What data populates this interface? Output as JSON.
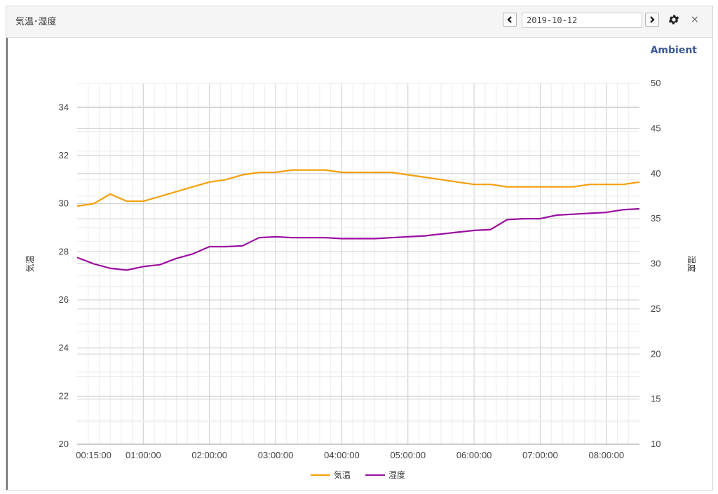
{
  "panel": {
    "title": "気温･湿度"
  },
  "toolbar": {
    "date_value": "2019-10-12",
    "prev_icon": "chevron-left-icon",
    "next_icon": "chevron-right-icon",
    "settings_icon": "gear-icon",
    "close_label": "×"
  },
  "brand": {
    "label": "Ambient",
    "color": "#3b5998"
  },
  "chart_data": {
    "type": "line",
    "x_ticks": [
      "00:15:00",
      "01:00:00",
      "02:00:00",
      "03:00:00",
      "04:00:00",
      "05:00:00",
      "06:00:00",
      "07:00:00",
      "08:00:00"
    ],
    "x_range": [
      "00:00:00",
      "08:30:00"
    ],
    "y_left": {
      "label": "気温",
      "ticks": [
        "20",
        "22",
        "24",
        "26",
        "28",
        "30",
        "32",
        "34"
      ],
      "range": [
        20,
        35
      ]
    },
    "y_right": {
      "label": "湿度",
      "ticks": [
        "10",
        "15",
        "20",
        "25",
        "30",
        "35",
        "40",
        "45",
        "50"
      ],
      "range": [
        10,
        50
      ]
    },
    "grid": true,
    "legend_placement": "bottom-center",
    "series": [
      {
        "name": "気温",
        "axis": "left",
        "color": "#f5a00c",
        "x": [
          "00:00",
          "00:15",
          "00:30",
          "00:45",
          "01:00",
          "01:15",
          "01:30",
          "01:45",
          "02:00",
          "02:15",
          "02:30",
          "02:45",
          "03:00",
          "03:15",
          "03:30",
          "03:45",
          "04:00",
          "04:15",
          "04:30",
          "04:45",
          "05:00",
          "05:15",
          "05:30",
          "05:45",
          "06:00",
          "06:15",
          "06:30",
          "06:45",
          "07:00",
          "07:15",
          "07:30",
          "07:45",
          "08:00",
          "08:15",
          "08:30"
        ],
        "values": [
          29.9,
          30.0,
          30.4,
          30.1,
          30.1,
          30.3,
          30.5,
          30.7,
          30.9,
          31.0,
          31.2,
          31.3,
          31.3,
          31.4,
          31.4,
          31.4,
          31.3,
          31.3,
          31.3,
          31.3,
          31.2,
          31.1,
          31.0,
          30.9,
          30.8,
          30.8,
          30.7,
          30.7,
          30.7,
          30.7,
          30.7,
          30.8,
          30.8,
          30.8,
          30.9
        ]
      },
      {
        "name": "湿度",
        "axis": "right",
        "color": "#9b0ea0",
        "x": [
          "00:00",
          "00:15",
          "00:30",
          "00:45",
          "01:00",
          "01:15",
          "01:30",
          "01:45",
          "02:00",
          "02:15",
          "02:30",
          "02:45",
          "03:00",
          "03:15",
          "03:30",
          "03:45",
          "04:00",
          "04:15",
          "04:30",
          "04:45",
          "05:00",
          "05:15",
          "05:30",
          "05:45",
          "06:00",
          "06:15",
          "06:30",
          "06:45",
          "07:00",
          "07:15",
          "07:30",
          "07:45",
          "08:00",
          "08:15",
          "08:30"
        ],
        "values": [
          30.7,
          30.0,
          29.5,
          29.3,
          29.7,
          29.9,
          30.6,
          31.1,
          31.9,
          31.9,
          32.0,
          32.9,
          33.0,
          32.9,
          32.9,
          32.9,
          32.8,
          32.8,
          32.8,
          32.9,
          33.0,
          33.1,
          33.3,
          33.5,
          33.7,
          33.8,
          34.9,
          35.0,
          35.0,
          35.4,
          35.5,
          35.6,
          35.7,
          36.0,
          36.1
        ]
      }
    ]
  }
}
